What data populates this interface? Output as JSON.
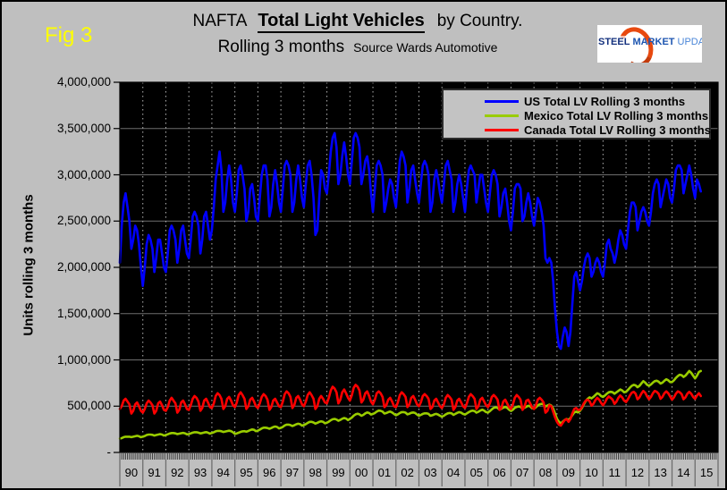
{
  "window": {
    "fig_label": "Fig 3"
  },
  "header": {
    "title_prefix": "NAFTA",
    "title_emphasis": "Total Light Vehicles",
    "title_suffix": "by Country.",
    "subtitle": "Rolling 3 months",
    "source": "Source Wards Automotive"
  },
  "logo": {
    "word1": "STEEL",
    "word2": "MARKET",
    "word3": "UPDATE"
  },
  "chart_data": {
    "type": "line",
    "title": "NAFTA Total Light Vehicles by Country - Rolling 3 months",
    "source": "Wards Automotive",
    "background": "#000000",
    "legend_position": "top-right",
    "grid": {
      "horizontal": "solid-gray",
      "vertical": "dotted-yearly"
    },
    "unit_multiplier": 1000,
    "points_per_year": 12,
    "x_axis": {
      "start_year": 1990,
      "end_year": 2015,
      "tick_labels": [
        "90",
        "91",
        "92",
        "93",
        "94",
        "95",
        "96",
        "97",
        "98",
        "99",
        "00",
        "01",
        "02",
        "03",
        "04",
        "05",
        "06",
        "07",
        "08",
        "09",
        "10",
        "11",
        "12",
        "13",
        "14",
        "15"
      ]
    },
    "y_axis": {
      "label": "Units rolling 3 months",
      "min": 0,
      "max": 4000000,
      "tick_interval": 500000,
      "tick_labels": [
        "4,000,000",
        "3,500,000",
        "3,000,000",
        "2,500,000",
        "2,000,000",
        "1,500,000",
        "1,000,000",
        "500,000",
        "-"
      ]
    },
    "series": [
      {
        "name": "US Total LV Rolling 3 months",
        "color": "#0000ff",
        "values": [
          2050,
          2450,
          2700,
          2800,
          2650,
          2500,
          2200,
          2300,
          2450,
          2400,
          2250,
          2000,
          1800,
          2000,
          2250,
          2350,
          2300,
          2200,
          1950,
          2100,
          2300,
          2300,
          2150,
          2000,
          1950,
          2150,
          2400,
          2450,
          2400,
          2300,
          2050,
          2200,
          2400,
          2450,
          2300,
          2150,
          2100,
          2300,
          2550,
          2600,
          2550,
          2450,
          2150,
          2300,
          2550,
          2600,
          2450,
          2300,
          2400,
          2650,
          2950,
          3100,
          3250,
          3050,
          2600,
          2700,
          2950,
          3100,
          2950,
          2700,
          2600,
          2800,
          3050,
          3100,
          3000,
          2850,
          2500,
          2600,
          2850,
          2900,
          2750,
          2550,
          2500,
          2750,
          3000,
          3100,
          3100,
          2950,
          2550,
          2650,
          2900,
          3050,
          2900,
          2700,
          2600,
          2850,
          3100,
          3150,
          3100,
          3000,
          2600,
          2700,
          2950,
          3100,
          2950,
          2750,
          2650,
          2900,
          3100,
          3150,
          3000,
          2750,
          2350,
          2400,
          2750,
          3050,
          3000,
          2850,
          2800,
          3000,
          3250,
          3400,
          3450,
          3300,
          2900,
          3000,
          3200,
          3350,
          3200,
          3000,
          2900,
          3150,
          3400,
          3450,
          3400,
          3300,
          2900,
          3000,
          3150,
          3200,
          3050,
          2800,
          2600,
          2850,
          3100,
          3150,
          3100,
          3000,
          2600,
          2700,
          2850,
          2950,
          2900,
          2750,
          2650,
          2900,
          3150,
          3250,
          3200,
          3100,
          2700,
          2850,
          3050,
          3100,
          2950,
          2800,
          2700,
          2900,
          3100,
          3150,
          3100,
          3000,
          2600,
          2700,
          2950,
          3050,
          2950,
          2800,
          2700,
          2900,
          3100,
          3150,
          3050,
          2950,
          2600,
          2700,
          2900,
          3000,
          2900,
          2750,
          2600,
          2850,
          3050,
          3100,
          3050,
          3000,
          2700,
          2850,
          3000,
          3000,
          2850,
          2700,
          2600,
          2800,
          3000,
          3050,
          3000,
          2900,
          2550,
          2650,
          2800,
          2850,
          2700,
          2500,
          2400,
          2600,
          2850,
          2900,
          2900,
          2850,
          2500,
          2550,
          2700,
          2800,
          2700,
          2550,
          2450,
          2600,
          2750,
          2700,
          2600,
          2450,
          2100,
          2050,
          2100,
          2050,
          1850,
          1550,
          1300,
          1150,
          1120,
          1250,
          1350,
          1300,
          1150,
          1300,
          1600,
          1900,
          1950,
          1850,
          1750,
          1850,
          2000,
          2100,
          2150,
          2100,
          1900,
          1950,
          2050,
          2100,
          2050,
          1950,
          1900,
          2050,
          2250,
          2300,
          2200,
          2150,
          2050,
          2150,
          2300,
          2400,
          2350,
          2250,
          2200,
          2400,
          2600,
          2700,
          2700,
          2650,
          2400,
          2500,
          2600,
          2650,
          2600,
          2500,
          2450,
          2600,
          2800,
          2900,
          2950,
          2900,
          2650,
          2750,
          2850,
          2950,
          2900,
          2750,
          2700,
          2850,
          3050,
          3100,
          3100,
          3050,
          2800,
          2900,
          3000,
          3100,
          3000,
          2850,
          2750,
          2950,
          2900,
          2820
        ]
      },
      {
        "name": "Mexico Total LV Rolling 3 months",
        "color": "#99cc00",
        "values": [
          150,
          155,
          165,
          170,
          170,
          170,
          165,
          170,
          175,
          180,
          175,
          165,
          170,
          178,
          188,
          193,
          193,
          190,
          183,
          188,
          193,
          198,
          193,
          183,
          188,
          196,
          205,
          210,
          210,
          206,
          198,
          203,
          208,
          212,
          207,
          196,
          198,
          206,
          214,
          218,
          218,
          214,
          206,
          210,
          215,
          219,
          214,
          204,
          210,
          218,
          228,
          233,
          233,
          229,
          221,
          226,
          231,
          235,
          230,
          218,
          200,
          206,
          214,
          222,
          228,
          230,
          224,
          232,
          242,
          248,
          244,
          230,
          236,
          246,
          260,
          268,
          268,
          264,
          256,
          264,
          274,
          280,
          275,
          260,
          266,
          276,
          292,
          300,
          300,
          296,
          286,
          294,
          304,
          310,
          305,
          290,
          296,
          306,
          320,
          330,
          330,
          324,
          312,
          320,
          330,
          336,
          330,
          315,
          322,
          332,
          348,
          358,
          362,
          356,
          342,
          352,
          364,
          372,
          366,
          350,
          362,
          378,
          398,
          412,
          418,
          412,
          396,
          406,
          422,
          432,
          426,
          410,
          416,
          426,
          442,
          452,
          450,
          442,
          420,
          426,
          436,
          442,
          432,
          416,
          402,
          412,
          426,
          436,
          436,
          430,
          412,
          418,
          428,
          432,
          426,
          410,
          396,
          406,
          416,
          422,
          422,
          416,
          396,
          402,
          412,
          416,
          410,
          396,
          386,
          396,
          412,
          422,
          426,
          422,
          406,
          416,
          428,
          436,
          430,
          416,
          410,
          422,
          436,
          446,
          452,
          446,
          430,
          440,
          452,
          462,
          452,
          436,
          432,
          446,
          466,
          482,
          488,
          482,
          462,
          472,
          484,
          492,
          482,
          462,
          448,
          462,
          482,
          492,
          498,
          492,
          472,
          482,
          494,
          504,
          498,
          478,
          474,
          488,
          508,
          520,
          526,
          520,
          496,
          506,
          516,
          506,
          474,
          420,
          362,
          332,
          312,
          332,
          352,
          362,
          352,
          372,
          402,
          432,
          442,
          432,
          450,
          480,
          520,
          555,
          580,
          595,
          585,
          600,
          620,
          640,
          630,
          610,
          600,
          615,
          635,
          650,
          655,
          650,
          635,
          650,
          665,
          680,
          670,
          650,
          655,
          675,
          700,
          720,
          730,
          725,
          705,
          720,
          745,
          770,
          755,
          730,
          720,
          735,
          755,
          770,
          775,
          765,
          745,
          755,
          775,
          790,
          780,
          760,
          760,
          780,
          805,
          825,
          840,
          835,
          815,
          830,
          855,
          880,
          860,
          830,
          800,
          830,
          870,
          880
        ]
      },
      {
        "name": "Canada Total LV Rolling 3 months",
        "color": "#ff0000",
        "values": [
          470,
          500,
          560,
          580,
          550,
          520,
          420,
          450,
          520,
          540,
          500,
          450,
          430,
          470,
          530,
          560,
          540,
          510,
          420,
          450,
          530,
          550,
          510,
          460,
          450,
          490,
          560,
          590,
          560,
          530,
          430,
          460,
          540,
          560,
          520,
          470,
          460,
          510,
          580,
          610,
          590,
          550,
          450,
          480,
          560,
          580,
          540,
          490,
          480,
          530,
          610,
          640,
          620,
          580,
          470,
          500,
          580,
          600,
          560,
          510,
          490,
          540,
          620,
          650,
          620,
          580,
          470,
          500,
          570,
          590,
          550,
          500,
          480,
          530,
          600,
          630,
          610,
          570,
          460,
          490,
          560,
          580,
          540,
          500,
          490,
          550,
          630,
          660,
          640,
          600,
          480,
          510,
          590,
          610,
          570,
          520,
          500,
          550,
          620,
          650,
          620,
          580,
          470,
          500,
          580,
          610,
          580,
          540,
          530,
          590,
          670,
          710,
          690,
          650,
          530,
          570,
          650,
          680,
          640,
          590,
          560,
          620,
          700,
          730,
          710,
          670,
          540,
          570,
          640,
          660,
          610,
          550,
          520,
          570,
          640,
          660,
          640,
          600,
          490,
          510,
          570,
          590,
          550,
          500,
          490,
          540,
          620,
          650,
          630,
          600,
          490,
          520,
          590,
          610,
          570,
          520,
          500,
          540,
          610,
          630,
          610,
          580,
          470,
          490,
          560,
          580,
          540,
          500,
          480,
          520,
          590,
          620,
          600,
          570,
          460,
          490,
          560,
          580,
          540,
          500,
          480,
          530,
          600,
          630,
          610,
          580,
          470,
          500,
          570,
          590,
          550,
          510,
          490,
          530,
          600,
          620,
          600,
          570,
          460,
          480,
          550,
          570,
          530,
          490,
          470,
          520,
          590,
          620,
          600,
          570,
          460,
          490,
          560,
          570,
          530,
          490,
          470,
          510,
          570,
          590,
          570,
          540,
          430,
          450,
          510,
          500,
          440,
          380,
          330,
          300,
          290,
          320,
          350,
          360,
          330,
          360,
          420,
          470,
          480,
          460,
          460,
          490,
          530,
          560,
          570,
          555,
          505,
          525,
          565,
          590,
          570,
          535,
          510,
          540,
          580,
          605,
          590,
          570,
          525,
          550,
          590,
          615,
          595,
          560,
          545,
          575,
          615,
          645,
          655,
          635,
          575,
          595,
          635,
          665,
          645,
          605,
          575,
          600,
          640,
          665,
          655,
          635,
          580,
          600,
          640,
          660,
          640,
          605,
          570,
          595,
          635,
          660,
          650,
          630,
          575,
          595,
          635,
          655,
          635,
          600,
          580,
          615,
          640,
          610
        ]
      }
    ]
  }
}
